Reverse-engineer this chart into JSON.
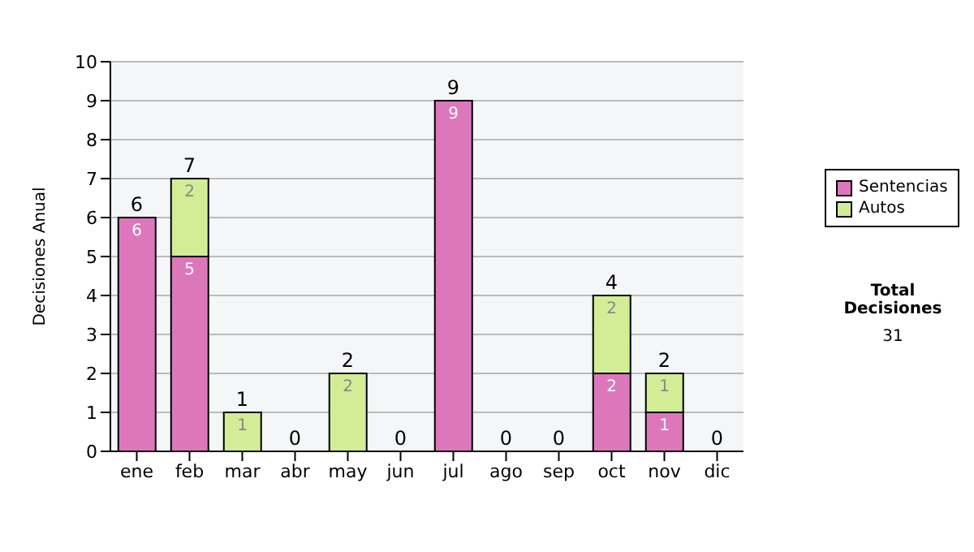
{
  "chart_data": {
    "type": "bar",
    "ylabel": "Decisiones Anual",
    "categories": [
      "ene",
      "feb",
      "mar",
      "abr",
      "may",
      "jun",
      "jul",
      "ago",
      "sep",
      "oct",
      "nov",
      "dic"
    ],
    "series": [
      {
        "name": "Sentencias",
        "color": "#dd77bb",
        "values": [
          6,
          5,
          0,
          0,
          0,
          0,
          9,
          0,
          0,
          2,
          1,
          0
        ],
        "value_labels": [
          "6",
          "5",
          null,
          null,
          null,
          null,
          "9",
          null,
          null,
          "2",
          "1",
          null
        ]
      },
      {
        "name": "Autos",
        "color": "#d3ec96",
        "values": [
          0,
          2,
          1,
          0,
          2,
          0,
          0,
          0,
          0,
          2,
          1,
          0
        ],
        "value_labels": [
          null,
          "2",
          "1",
          null,
          "2",
          null,
          null,
          null,
          null,
          "2",
          "1",
          null
        ]
      }
    ],
    "stacked": true,
    "totals": [
      "6",
      "7",
      "1",
      "0",
      "2",
      "0",
      "9",
      "0",
      "0",
      "4",
      "2",
      "0"
    ],
    "ylim": [
      0,
      10
    ],
    "yticks": [
      0,
      1,
      2,
      3,
      4,
      5,
      6,
      7,
      8,
      9,
      10
    ],
    "grid": "y",
    "legend": "right",
    "annotations": [
      "Total Decisiones",
      "31"
    ]
  }
}
